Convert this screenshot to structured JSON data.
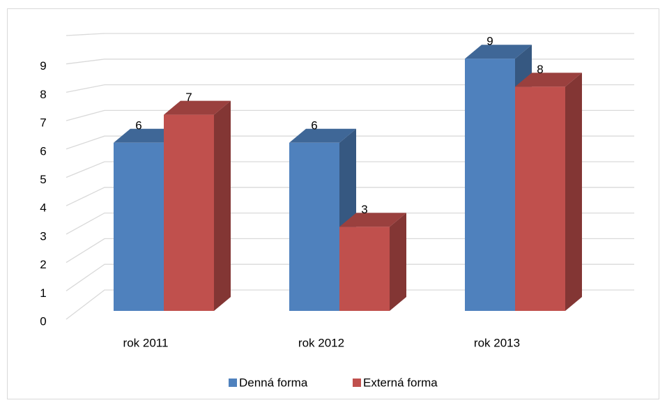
{
  "chart_data": {
    "type": "bar3d",
    "categories": [
      "rok 2011",
      "rok 2012",
      "rok 2013"
    ],
    "series": [
      {
        "name": "Denná forma",
        "color": "#4f81bd",
        "values": [
          6,
          6,
          9
        ]
      },
      {
        "name": "Externá forma",
        "color": "#c0504d",
        "values": [
          7,
          3,
          8
        ]
      }
    ],
    "ylim": [
      0,
      10
    ],
    "yticks": [
      0,
      1,
      2,
      3,
      4,
      5,
      6,
      7,
      8,
      9
    ],
    "grid": true,
    "legend": "bottom"
  }
}
